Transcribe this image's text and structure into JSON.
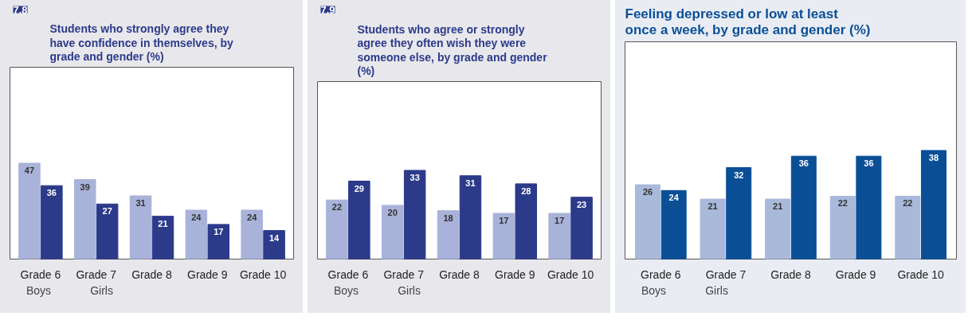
{
  "chart_data": [
    {
      "type": "bar",
      "title": "Students who strongly agree they have confidence in themselves, by grade and gender (%)",
      "annotations": [
        "7.8"
      ],
      "categories": [
        "Grade 6",
        "Grade 7",
        "Grade 8",
        "Grade 9",
        "Grade 10"
      ],
      "series": [
        {
          "name": "Boys",
          "color": "#a9b2d9",
          "values": [
            47,
            39,
            31,
            24,
            24
          ]
        },
        {
          "name": "Girls",
          "color": "#2c3a8a",
          "values": [
            36,
            27,
            21,
            17,
            14
          ]
        }
      ],
      "data_labels": true,
      "legend": "bottom",
      "grid": false
    },
    {
      "type": "bar",
      "title": "Students who agree or strongly agree they often wish they were someone else, by grade and gender (%)",
      "annotations": [
        "7.9"
      ],
      "categories": [
        "Grade 6",
        "Grade 7",
        "Grade 8",
        "Grade 9",
        "Grade 10"
      ],
      "series": [
        {
          "name": "Boys",
          "color": "#a9b2d9",
          "values": [
            22,
            20,
            18,
            17,
            17
          ]
        },
        {
          "name": "Girls",
          "color": "#2c3a8a",
          "values": [
            29,
            33,
            31,
            28,
            23
          ]
        }
      ],
      "data_labels": true,
      "legend": "bottom",
      "grid": false
    },
    {
      "type": "bar",
      "title": "Feeling depressed or low at least once a week, by grade and gender (%)",
      "categories": [
        "Grade 6",
        "Grade 7",
        "Grade 8",
        "Grade 9",
        "Grade 10"
      ],
      "series": [
        {
          "name": "Boys",
          "color": "#a8b9da",
          "values": [
            26,
            21,
            21,
            22,
            22
          ]
        },
        {
          "name": "Girls",
          "color": "#0a4f96",
          "values": [
            24,
            32,
            36,
            36,
            38
          ]
        }
      ],
      "data_labels": true,
      "legend": "bottom",
      "grid": false
    }
  ]
}
